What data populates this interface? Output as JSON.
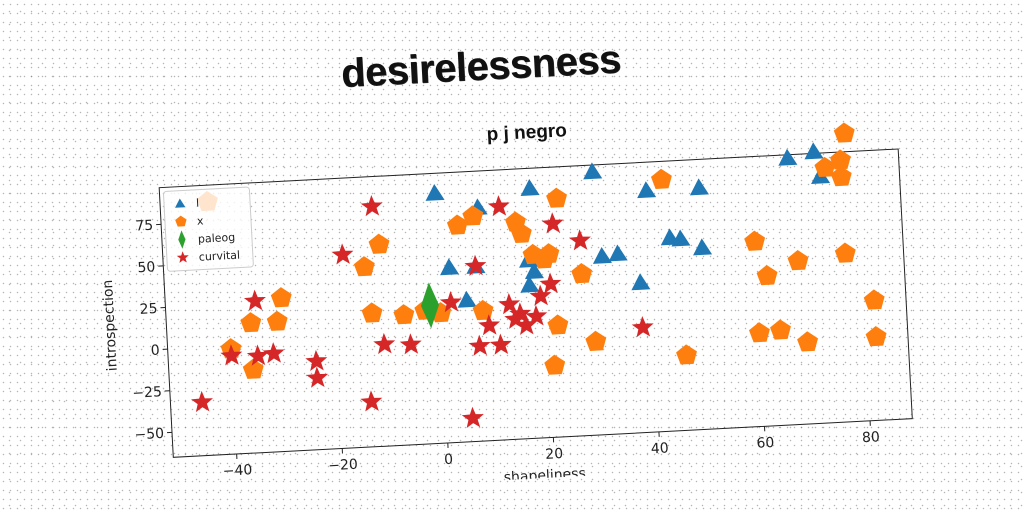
{
  "headline": "desirelessness",
  "chart_data": {
    "type": "scatter",
    "title": "p j negro",
    "xlabel": "shapeliness",
    "ylabel": "introspection",
    "xlim": [
      -52,
      88
    ],
    "ylim": [
      -65,
      97
    ],
    "xticks": [
      -40,
      -20,
      0,
      20,
      40,
      60,
      80
    ],
    "yticks": [
      -50,
      -25,
      0,
      25,
      50,
      75
    ],
    "grid": false,
    "legend_position": "upper-left",
    "series": [
      {
        "name": "l",
        "marker": "triangle",
        "color": "#1f77b4",
        "points": [
          {
            "x": 0,
            "y": 85
          },
          {
            "x": 2,
            "y": 40
          },
          {
            "x": 5,
            "y": 20
          },
          {
            "x": 8,
            "y": 75
          },
          {
            "x": 7,
            "y": 40
          },
          {
            "x": 18,
            "y": 85
          },
          {
            "x": 17,
            "y": 42
          },
          {
            "x": 17,
            "y": 27
          },
          {
            "x": 18,
            "y": 35
          },
          {
            "x": 30,
            "y": 93
          },
          {
            "x": 31,
            "y": 42
          },
          {
            "x": 34,
            "y": 43
          },
          {
            "x": 38,
            "y": 25
          },
          {
            "x": 40,
            "y": 80
          },
          {
            "x": 44,
            "y": 51
          },
          {
            "x": 46,
            "y": 50
          },
          {
            "x": 50,
            "y": 80
          },
          {
            "x": 50,
            "y": 44
          },
          {
            "x": 67,
            "y": 95
          },
          {
            "x": 72,
            "y": 98
          },
          {
            "x": 73,
            "y": 83
          }
        ]
      },
      {
        "name": "x",
        "marker": "pentagon",
        "color": "#ff7f0e",
        "points": [
          {
            "x": -43,
            "y": 87
          },
          {
            "x": -40,
            "y": -2
          },
          {
            "x": -36,
            "y": -15
          },
          {
            "x": -36,
            "y": 13
          },
          {
            "x": -31,
            "y": 13
          },
          {
            "x": -30,
            "y": 27
          },
          {
            "x": -14,
            "y": 43
          },
          {
            "x": -13,
            "y": 15
          },
          {
            "x": -11,
            "y": 56
          },
          {
            "x": -7,
            "y": 13
          },
          {
            "x": -3,
            "y": 15
          },
          {
            "x": -2,
            "y": 16
          },
          {
            "x": 0,
            "y": 13
          },
          {
            "x": 4,
            "y": 65
          },
          {
            "x": 7,
            "y": 70
          },
          {
            "x": 8,
            "y": 13
          },
          {
            "x": 15,
            "y": 65
          },
          {
            "x": 16,
            "y": 58
          },
          {
            "x": 18,
            "y": 45
          },
          {
            "x": 20,
            "y": 42
          },
          {
            "x": 21,
            "y": 45
          },
          {
            "x": 21,
            "y": -22
          },
          {
            "x": 22,
            "y": 2
          },
          {
            "x": 23,
            "y": 78
          },
          {
            "x": 27,
            "y": 32
          },
          {
            "x": 29,
            "y": -9
          },
          {
            "x": 43,
            "y": 86
          },
          {
            "x": 46,
            "y": -20
          },
          {
            "x": 60,
            "y": -9
          },
          {
            "x": 60,
            "y": 46
          },
          {
            "x": 62,
            "y": 25
          },
          {
            "x": 64,
            "y": -8
          },
          {
            "x": 68,
            "y": 33
          },
          {
            "x": 69,
            "y": -16
          },
          {
            "x": 74,
            "y": 88
          },
          {
            "x": 77,
            "y": 36
          },
          {
            "x": 77,
            "y": 92
          },
          {
            "x": 77,
            "y": 82
          },
          {
            "x": 78,
            "y": 108
          },
          {
            "x": 82,
            "y": 7
          },
          {
            "x": 82,
            "y": -15
          }
        ]
      },
      {
        "name": "paleog",
        "marker": "diamond",
        "color": "#2ca02c",
        "points": [
          {
            "x": -2,
            "y": 18
          }
        ]
      },
      {
        "name": "curvital",
        "marker": "star",
        "color": "#d62728",
        "points": [
          {
            "x": -46,
            "y": -33
          },
          {
            "x": -40,
            "y": -6
          },
          {
            "x": -35,
            "y": 26
          },
          {
            "x": -35,
            "y": -7
          },
          {
            "x": -32,
            "y": -6
          },
          {
            "x": -24,
            "y": -12
          },
          {
            "x": -24,
            "y": -22
          },
          {
            "x": -18,
            "y": 51
          },
          {
            "x": -14,
            "y": -38
          },
          {
            "x": -12,
            "y": 79
          },
          {
            "x": -11,
            "y": -4
          },
          {
            "x": -6,
            "y": -5
          },
          {
            "x": 2,
            "y": 19
          },
          {
            "x": 5,
            "y": -51
          },
          {
            "x": 7,
            "y": 40
          },
          {
            "x": 7,
            "y": -8
          },
          {
            "x": 9,
            "y": 4
          },
          {
            "x": 11,
            "y": -8
          },
          {
            "x": 12,
            "y": 75
          },
          {
            "x": 13,
            "y": 16
          },
          {
            "x": 14,
            "y": 7
          },
          {
            "x": 15,
            "y": 10
          },
          {
            "x": 16,
            "y": 3
          },
          {
            "x": 18,
            "y": 8
          },
          {
            "x": 19,
            "y": 20
          },
          {
            "x": 21,
            "y": 27
          },
          {
            "x": 22,
            "y": 63
          },
          {
            "x": 27,
            "y": 52
          },
          {
            "x": 38,
            "y": -2
          }
        ]
      }
    ]
  }
}
